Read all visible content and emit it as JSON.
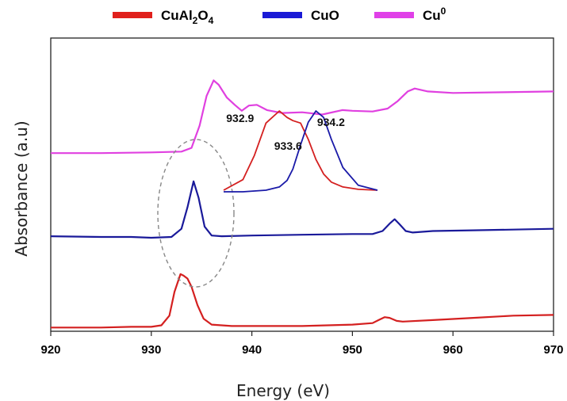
{
  "chart_data": {
    "type": "line",
    "xlabel": "Energy (eV)",
    "ylabel": "Absorbance (a.u)",
    "xlim": [
      920,
      970
    ],
    "x_ticks": [
      920,
      930,
      940,
      950,
      960,
      970
    ],
    "y_ticks_shown": false,
    "grid": false,
    "legend_position": "top",
    "legend": [
      {
        "name": "CuAl2O4",
        "base": "CuAl",
        "sub1": "2",
        "mid": "O",
        "sub2": "4",
        "color": "#e0201c"
      },
      {
        "name": "CuO",
        "base": "CuO",
        "color": "#1a1ad6"
      },
      {
        "name": "Cu0",
        "base": "Cu",
        "sup": "0",
        "color": "#e040e8"
      }
    ],
    "series": [
      {
        "name": "CuAl2O4",
        "color": "#d42020",
        "x": [
          920,
          925,
          928,
          930,
          931,
          931.8,
          932.3,
          932.9,
          933.2,
          933.6,
          934.0,
          934.6,
          935.2,
          936,
          937,
          938,
          940,
          945,
          950,
          952,
          952.6,
          953.2,
          953.7,
          954.4,
          955,
          958,
          962,
          966,
          970
        ],
        "y": [
          0.0,
          0.0,
          0.01,
          0.01,
          0.03,
          0.16,
          0.48,
          0.72,
          0.7,
          0.66,
          0.55,
          0.3,
          0.12,
          0.04,
          0.03,
          0.02,
          0.02,
          0.02,
          0.04,
          0.06,
          0.1,
          0.14,
          0.13,
          0.09,
          0.08,
          0.1,
          0.13,
          0.16,
          0.17
        ]
      },
      {
        "name": "CuO",
        "color": "#1a1a9a",
        "x": [
          920,
          925,
          928,
          930,
          932,
          933,
          933.6,
          934.2,
          934.7,
          935.3,
          936,
          937,
          940,
          945,
          950,
          952,
          953,
          953.7,
          954.2,
          954.7,
          955.3,
          956,
          958,
          962,
          966,
          970
        ],
        "y": [
          1.23,
          1.22,
          1.22,
          1.21,
          1.22,
          1.33,
          1.62,
          1.97,
          1.75,
          1.36,
          1.24,
          1.23,
          1.24,
          1.25,
          1.26,
          1.26,
          1.3,
          1.4,
          1.46,
          1.39,
          1.3,
          1.28,
          1.3,
          1.31,
          1.32,
          1.33
        ]
      },
      {
        "name": "Cu0",
        "color": "#e040e0",
        "x": [
          920,
          925,
          930,
          933,
          934,
          934.8,
          935.5,
          936.2,
          936.7,
          937.5,
          938.3,
          939,
          939.7,
          940.5,
          941.5,
          943,
          945,
          947,
          949,
          950,
          952,
          953.5,
          954.5,
          955.5,
          956.2,
          957.5,
          960,
          965,
          970
        ],
        "y": [
          2.35,
          2.35,
          2.36,
          2.37,
          2.42,
          2.72,
          3.12,
          3.33,
          3.27,
          3.1,
          3.0,
          2.92,
          2.99,
          3.0,
          2.93,
          2.89,
          2.9,
          2.87,
          2.93,
          2.92,
          2.91,
          2.95,
          3.05,
          3.18,
          3.22,
          3.18,
          3.16,
          3.17,
          3.18
        ]
      }
    ],
    "inset": {
      "x": [
        930,
        931,
        931.6,
        932.2,
        932.9,
        933.3,
        933.6,
        934.0,
        934.4,
        934.8,
        935.2,
        935.6,
        936.2,
        937,
        938
      ],
      "series": [
        {
          "name": "CuAl2O4",
          "color": "#d42020",
          "y": [
            0.02,
            0.15,
            0.45,
            0.85,
            1.0,
            0.92,
            0.88,
            0.85,
            0.65,
            0.4,
            0.22,
            0.12,
            0.06,
            0.03,
            0.02
          ]
        },
        {
          "name": "CuO",
          "color": "#1a1aa8",
          "y": [
            0.0,
            0.0,
            0.01,
            0.02,
            0.06,
            0.14,
            0.28,
            0.58,
            0.86,
            1.0,
            0.92,
            0.65,
            0.3,
            0.08,
            0.02
          ]
        }
      ],
      "annotations": [
        {
          "text": "932.9",
          "x": 932.9
        },
        {
          "text": "933.6",
          "x": 933.6
        },
        {
          "text": "934.2",
          "x": 934.2
        }
      ]
    }
  }
}
